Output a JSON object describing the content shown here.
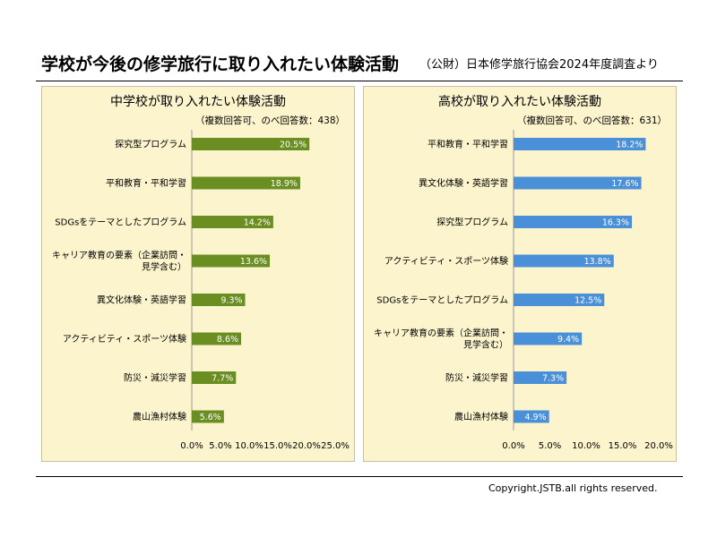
{
  "header": {
    "title": "学校が今後の修学旅行に取り入れたい体験活動",
    "source": "（公財）日本修学旅行協会2024年度調査より"
  },
  "footer": {
    "copyright": "Copyright.JSTB.all rights reserved."
  },
  "chart_data": [
    {
      "type": "bar",
      "orientation": "horizontal",
      "title": "中学校が取り入れたい体験活動",
      "subtitle": "（複数回答可、のべ回答数：438）",
      "categories": [
        "探究型プログラム",
        "平和教育・平和学習",
        "SDGsをテーマとしたプログラム",
        "キャリア教育の要素（企業訪問・見学含む）",
        "異文化体験・英語学習",
        "アクティビティ・スポーツ体験",
        "防災・減災学習",
        "農山漁村体験"
      ],
      "category_lines": [
        [
          "探究型プログラム"
        ],
        [
          "平和教育・平和学習"
        ],
        [
          "SDGsをテーマとしたプログラム"
        ],
        [
          "キャリア教育の要素（企業訪問・",
          "見学含む）"
        ],
        [
          "異文化体験・英語学習"
        ],
        [
          "アクティビティ・スポーツ体験"
        ],
        [
          "防災・減災学習"
        ],
        [
          "農山漁村体験"
        ]
      ],
      "values": [
        20.5,
        18.9,
        14.2,
        13.6,
        9.3,
        8.6,
        7.7,
        5.6
      ],
      "value_labels": [
        "20.5%",
        "18.9%",
        "14.2%",
        "13.6%",
        "9.3%",
        "8.6%",
        "7.7%",
        "5.6%"
      ],
      "xlim": [
        0,
        25
      ],
      "ticks": [
        0,
        5,
        10,
        15,
        20,
        25
      ],
      "tick_labels": [
        "0.0%",
        "5.0%",
        "10.0%",
        "15.0%",
        "20.0%",
        "25.0%"
      ],
      "color": "#6b8e23",
      "grid": false,
      "legend": "none"
    },
    {
      "type": "bar",
      "orientation": "horizontal",
      "title": "高校が取り入れたい体験活動",
      "subtitle": "（複数回答可、のべ回答数：631）",
      "categories": [
        "平和教育・平和学習",
        "異文化体験・英語学習",
        "探究型プログラム",
        "アクティビティ・スポーツ体験",
        "SDGsをテーマとしたプログラム",
        "キャリア教育の要素（企業訪問・見学含む）",
        "防災・減災学習",
        "農山漁村体験"
      ],
      "category_lines": [
        [
          "平和教育・平和学習"
        ],
        [
          "異文化体験・英語学習"
        ],
        [
          "探究型プログラム"
        ],
        [
          "アクティビティ・スポーツ体験"
        ],
        [
          "SDGsをテーマとしたプログラム"
        ],
        [
          "キャリア教育の要素（企業訪問・",
          "見学含む）"
        ],
        [
          "防災・減災学習"
        ],
        [
          "農山漁村体験"
        ]
      ],
      "values": [
        18.2,
        17.6,
        16.3,
        13.8,
        12.5,
        9.4,
        7.3,
        4.9
      ],
      "value_labels": [
        "18.2%",
        "17.6%",
        "16.3%",
        "13.8%",
        "12.5%",
        "9.4%",
        "7.3%",
        "4.9%"
      ],
      "xlim": [
        0,
        20
      ],
      "ticks": [
        0,
        5,
        10,
        15,
        20
      ],
      "tick_labels": [
        "0.0%",
        "5.0%",
        "10.0%",
        "15.0%",
        "20.0%"
      ],
      "color": "#4a90d9",
      "grid": false,
      "legend": "none"
    }
  ]
}
